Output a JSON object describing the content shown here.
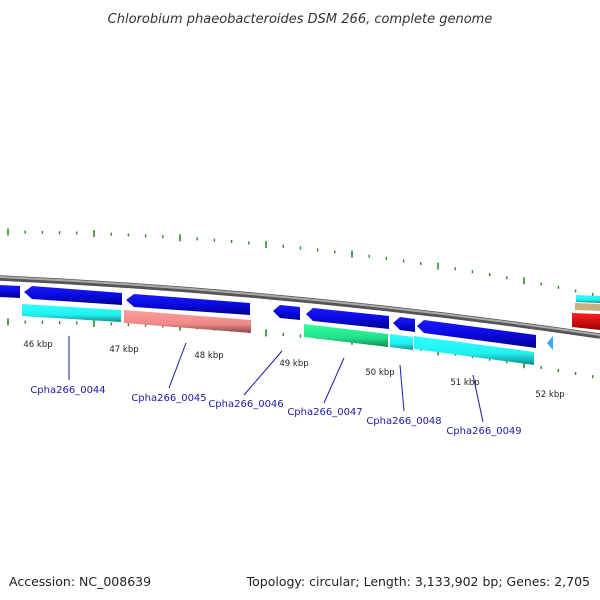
{
  "title": "Chlorobium phaeobacteroides DSM 266, complete genome",
  "footer": {
    "accession": "Accession: NC_008639",
    "summary": "Topology: circular; Length: 3,133,902 bp; Genes: 2,705"
  },
  "colors": {
    "backbone": "#8a8a8a",
    "tick": "#2a8a2a",
    "label_line": "#1a1aaa",
    "gene_label": "#1a1aaa",
    "cds_dark_blue": "#0a0ae0",
    "cds_cyan": "#22f0f0",
    "cds_pink": "#f08a8a",
    "cds_green": "#22e08a",
    "cds_light_blue": "#3aa8f0",
    "cds_red": "#f01010",
    "cds_tan": "#c8b080"
  },
  "kbp_labels": [
    "46 kbp",
    "47 kbp",
    "48 kbp",
    "49 kbp",
    "50 kbp",
    "51 kbp",
    "52 kbp"
  ],
  "gene_labels": [
    "Cpha266_0044",
    "Cpha266_0045",
    "Cpha266_0046",
    "Cpha266_0047",
    "Cpha266_0048",
    "Cpha266_0049"
  ]
}
